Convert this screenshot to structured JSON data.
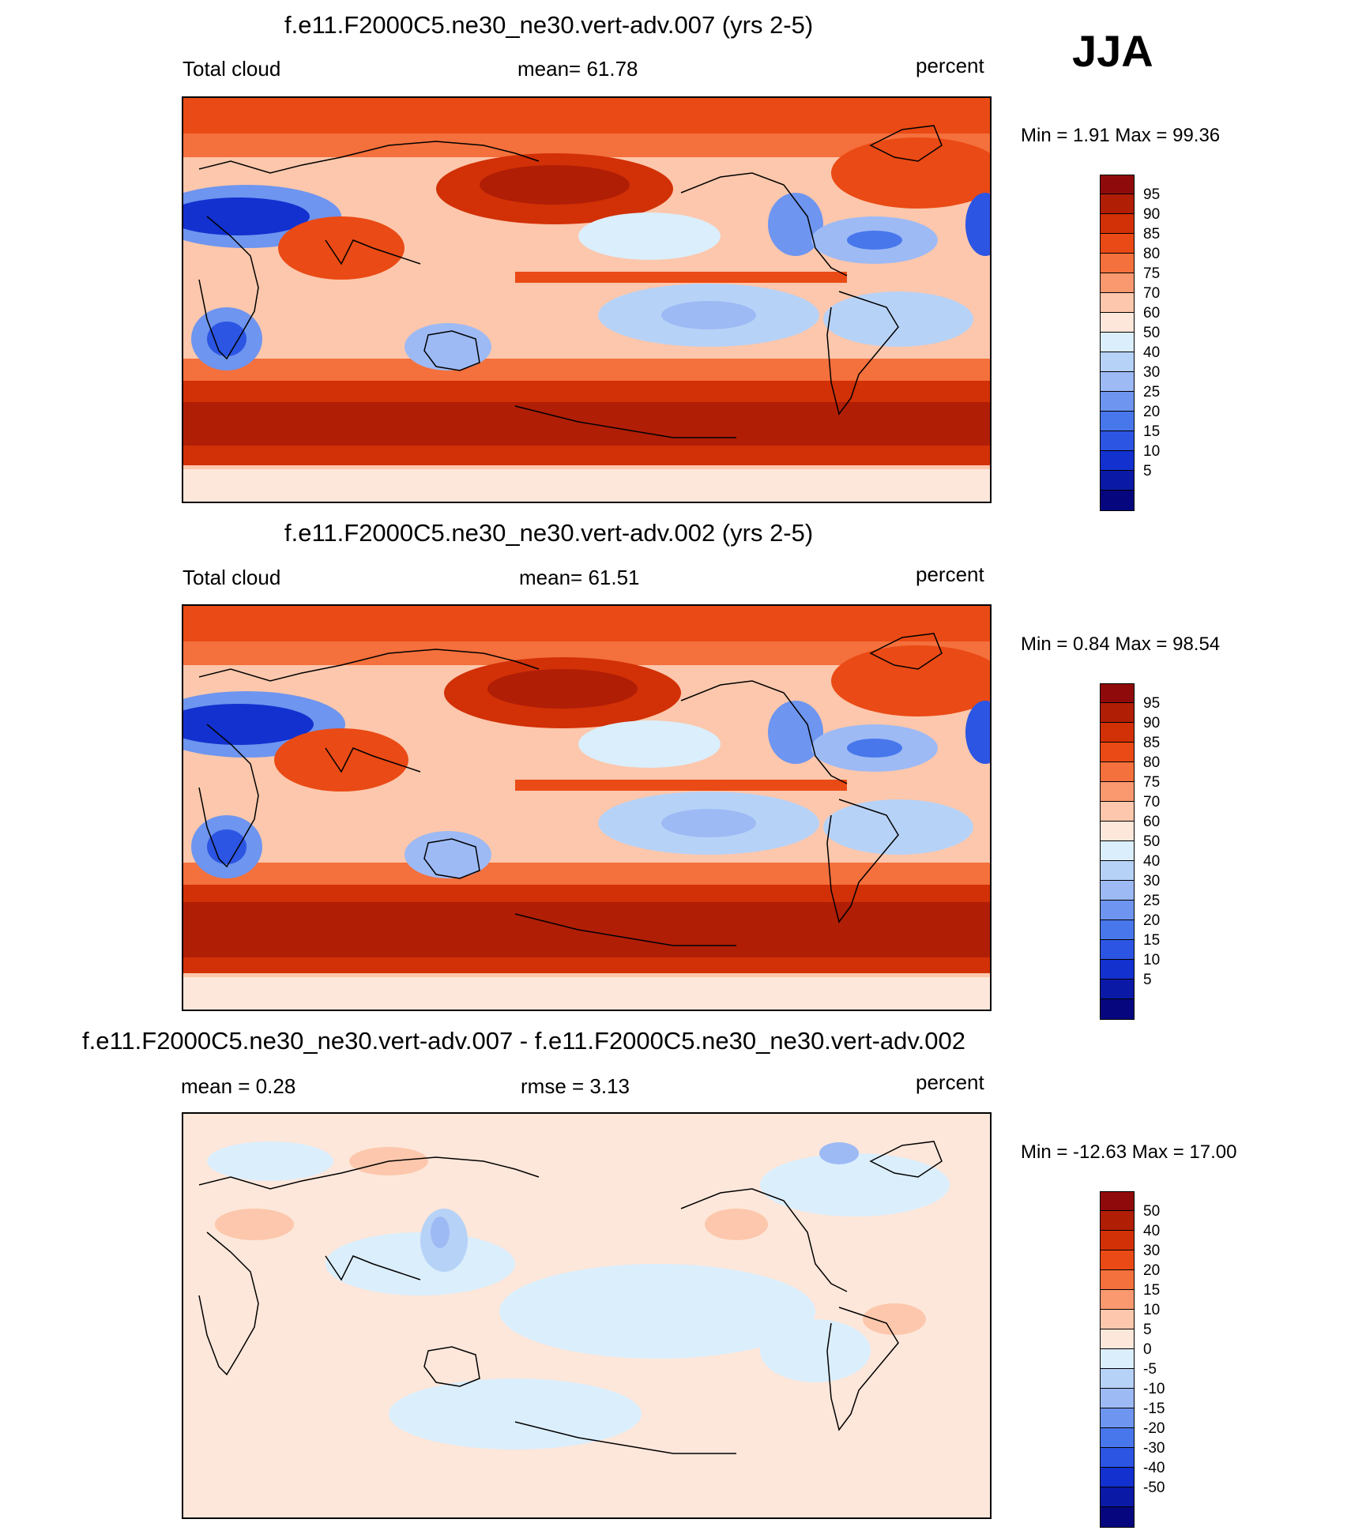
{
  "season": "JJA",
  "panels": [
    {
      "title": "f.e11.F2000C5.ne30_ne30.vert-adv.007 (yrs 2-5)",
      "left_label": "Total cloud",
      "center_label": "mean=  61.78",
      "right_label": "percent",
      "minmax": "Min =   1.91 Max =  99.36",
      "field": "absolute"
    },
    {
      "title": "f.e11.F2000C5.ne30_ne30.vert-adv.002 (yrs 2-5)",
      "left_label": "Total cloud",
      "center_label": "mean=  61.51",
      "right_label": "percent",
      "minmax": "Min =   0.84 Max =  98.54",
      "field": "absolute"
    },
    {
      "title": "f.e11.F2000C5.ne30_ne30.vert-adv.007 - f.e11.F2000C5.ne30_ne30.vert-adv.002",
      "left_label": "mean =    0.28",
      "center_label": "rmse =    3.13",
      "right_label": "percent",
      "minmax": "Min = -12.63 Max =  17.00",
      "field": "difference"
    }
  ],
  "colorbars": {
    "absolute": {
      "colors": [
        "#8f0b0b",
        "#b01e06",
        "#d23006",
        "#ea4a15",
        "#f4703c",
        "#fa9870",
        "#fcc7ac",
        "#fde7da",
        "#dbeefc",
        "#b7d2f7",
        "#9dbaf5",
        "#6e95ef",
        "#4877ec",
        "#2c55e3",
        "#1231cf",
        "#0a1aa6",
        "#06077e"
      ],
      "labels": [
        "95",
        "90",
        "85",
        "80",
        "75",
        "70",
        "60",
        "50",
        "40",
        "30",
        "25",
        "20",
        "15",
        "10",
        "5"
      ]
    },
    "difference": {
      "colors": [
        "#8f0b0b",
        "#b01e06",
        "#d23006",
        "#ea4a15",
        "#f4703c",
        "#fa9870",
        "#fcc7ac",
        "#fde7da",
        "#dbeefc",
        "#b7d2f7",
        "#9dbaf5",
        "#6e95ef",
        "#4877ec",
        "#2c55e3",
        "#1231cf",
        "#0a1aa6",
        "#06077e"
      ],
      "labels": [
        "50",
        "40",
        "30",
        "20",
        "15",
        "10",
        "5",
        "0",
        "-5",
        "-10",
        "-15",
        "-20",
        "-30",
        "-40",
        "-50"
      ]
    }
  }
}
